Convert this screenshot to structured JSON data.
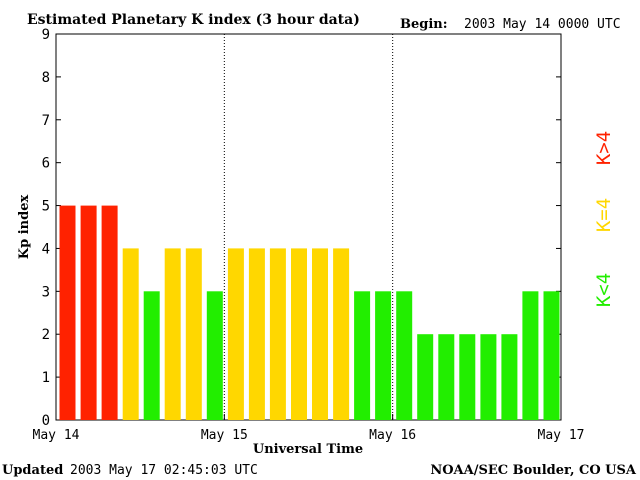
{
  "chart_data": {
    "type": "bar",
    "title": "Estimated Planetary K index (3 hour data)",
    "begin_label": "Begin:",
    "begin_value": "2003 May 14 0000 UTC",
    "xlabel": "Universal Time",
    "ylabel": "Kp index",
    "ylim": [
      0,
      9
    ],
    "yticks": [
      "0",
      "1",
      "2",
      "3",
      "4",
      "5",
      "6",
      "7",
      "8",
      "9"
    ],
    "day_labels": [
      "May 14",
      "May 15",
      "May 16",
      "May 17"
    ],
    "bars_per_day": 8,
    "values": [
      5,
      5,
      5,
      4,
      3,
      4,
      4,
      3,
      4,
      4,
      4,
      4,
      4,
      4,
      3,
      3,
      3,
      2,
      2,
      2,
      2,
      2,
      3,
      3
    ],
    "grid": false,
    "colors": {
      "below4": "#22ee00",
      "equal4": "#ffd700",
      "above4": "#ff2200"
    },
    "legend": {
      "placement": "right",
      "above4": "K>4",
      "equal4": "K=4",
      "below4": "K<4"
    }
  },
  "footer": {
    "updated_label": "Updated",
    "updated_value": "2003 May 17 02:45:03 UTC",
    "source": "NOAA/SEC Boulder, CO USA"
  }
}
